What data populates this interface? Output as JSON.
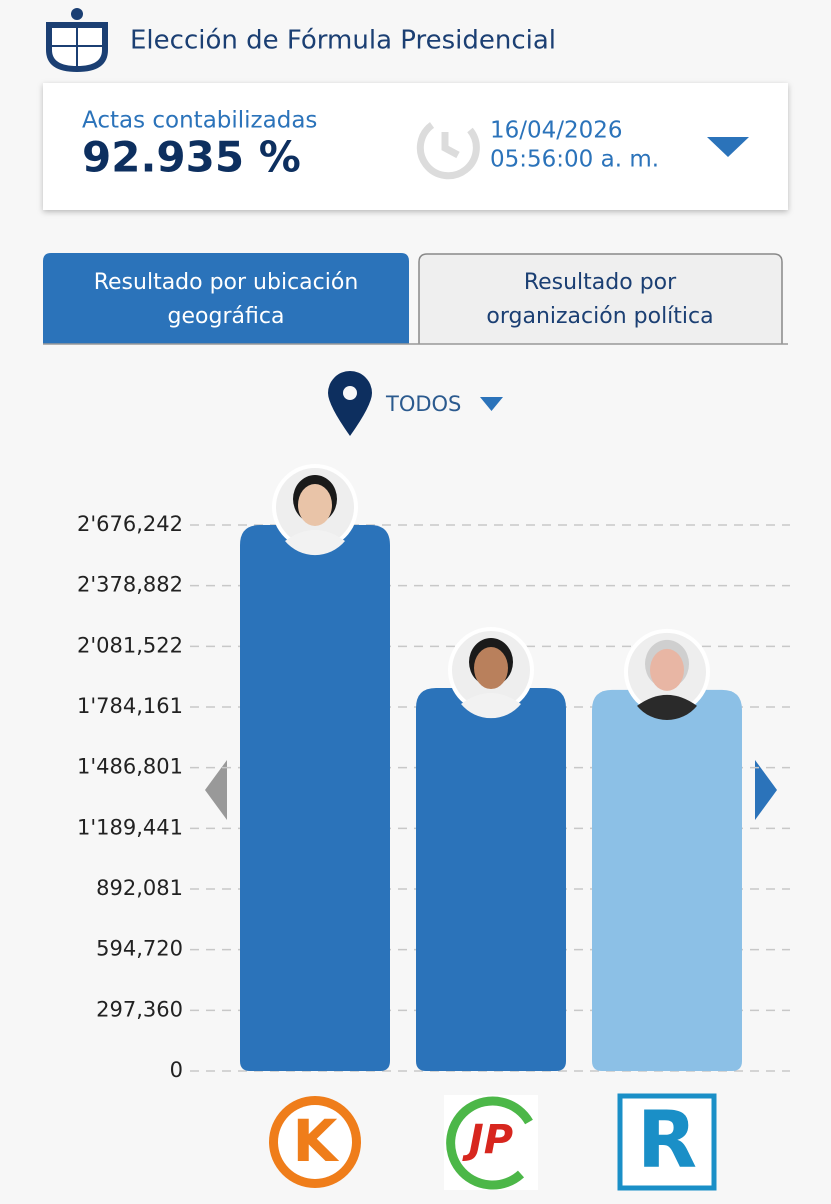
{
  "header": {
    "title": "Elección de Fórmula Presidencial"
  },
  "summary": {
    "label": "Actas contabilizadas",
    "percent": "92.935 %",
    "date": "16/04/2026",
    "time": "05:56:00 a. m."
  },
  "tabs": [
    {
      "line1": "Resultado por ubicación",
      "line2": "geográfica"
    },
    {
      "line1": "Resultado por",
      "line2": "organización política"
    }
  ],
  "filter": "TODOS",
  "chart_data": {
    "type": "bar",
    "categories": [
      "K",
      "JP",
      "R"
    ],
    "values": [
      2676242,
      1877000,
      1868000
    ],
    "colors": [
      "#2b73ba",
      "#2b73ba",
      "#8cc0e6"
    ],
    "ylim": [
      0,
      2676242
    ],
    "yticks": [
      0,
      {
        "value": 297360,
        "label": "297,360"
      },
      {
        "value": 594720,
        "label": "594,720"
      },
      {
        "value": 892081,
        "label": "892,081"
      },
      {
        "value": 1189441,
        "label": "1'189,441"
      },
      {
        "value": 1486801,
        "label": "1'486,801"
      },
      {
        "value": 1784161,
        "label": "1'784,161"
      },
      {
        "value": 2081522,
        "label": "2'081,522"
      },
      {
        "value": 2378882,
        "label": "2'378,882"
      },
      {
        "value": 2676242,
        "label": "2'676,242"
      }
    ],
    "grid": true
  }
}
